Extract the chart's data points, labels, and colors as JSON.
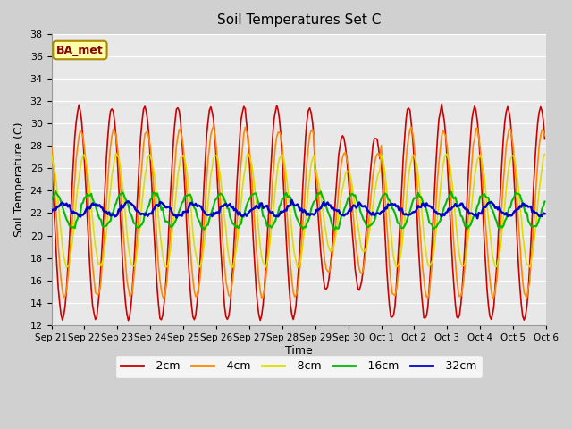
{
  "title": "Soil Temperatures Set C",
  "xlabel": "Time",
  "ylabel": "Soil Temperature (C)",
  "ylim": [
    12,
    38
  ],
  "yticks": [
    12,
    14,
    16,
    18,
    20,
    22,
    24,
    26,
    28,
    30,
    32,
    34,
    36,
    38
  ],
  "legend_label": "BA_met",
  "series_labels": [
    "-2cm",
    "-4cm",
    "-8cm",
    "-16cm",
    "-32cm"
  ],
  "series_colors": [
    "#cc0000",
    "#ff8800",
    "#dddd00",
    "#00bb00",
    "#0000cc"
  ],
  "series_linewidths": [
    1.2,
    1.2,
    1.2,
    1.5,
    1.8
  ],
  "date_labels": [
    "Sep 21",
    "Sep 22",
    "Sep 23",
    "Sep 24",
    "Sep 25",
    "Sep 26",
    "Sep 27",
    "Sep 28",
    "Sep 29",
    "Sep 30",
    "Oct 1",
    "Oct 2",
    "Oct 3",
    "Oct 4",
    "Oct 5",
    "Oct 6"
  ],
  "n_days": 15,
  "amplitudes": [
    9.5,
    7.5,
    5.0,
    1.5,
    0.5
  ],
  "phase_lags_hours": [
    0,
    1.5,
    3.5,
    7.0,
    12.0
  ],
  "means": [
    22.0,
    22.0,
    22.2,
    22.2,
    22.3
  ],
  "pts_per_day": 24
}
